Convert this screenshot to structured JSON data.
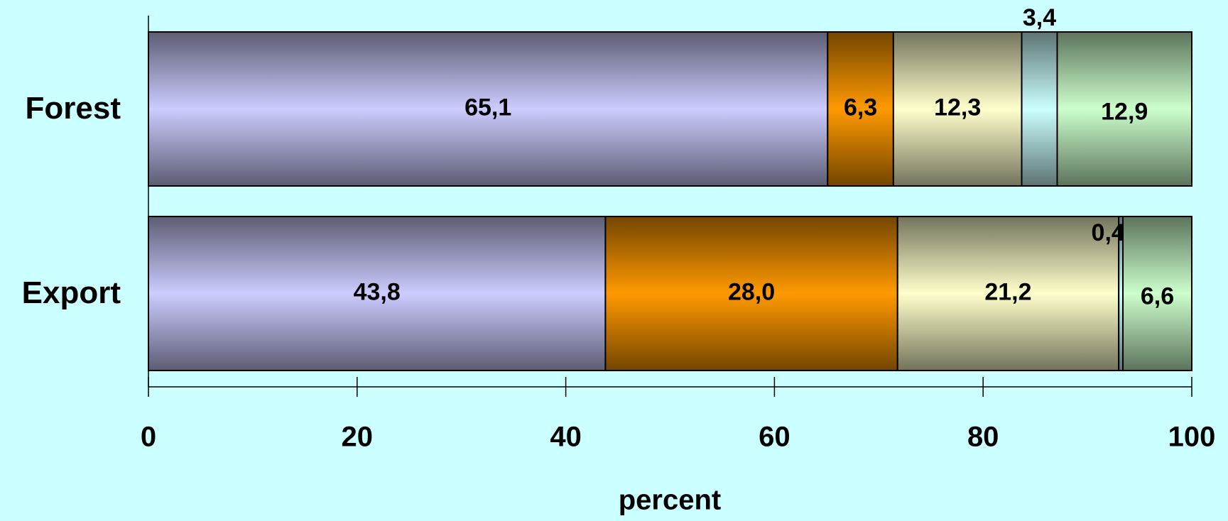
{
  "chart_data": {
    "type": "stacked-bar-horizontal",
    "x_label": "percent",
    "categories": [
      "Forest",
      "Export"
    ],
    "series": [
      {
        "color": "#ccccff",
        "values": [
          65.1,
          43.8
        ],
        "value_labels": [
          "65,1",
          "43,8"
        ]
      },
      {
        "color": "#ff9900",
        "values": [
          6.3,
          28.0
        ],
        "value_labels": [
          "6,3",
          "28,0"
        ]
      },
      {
        "color": "#ffffcc",
        "values": [
          12.3,
          21.2
        ],
        "value_labels": [
          "12,3",
          "21,2"
        ]
      },
      {
        "color": "#ccffff",
        "values": [
          3.4,
          0.4
        ],
        "value_labels": [
          "3,4",
          "0,4"
        ]
      },
      {
        "color": "#ccffcc",
        "values": [
          12.9,
          6.6
        ],
        "value_labels": [
          "12,9",
          "6,6"
        ]
      }
    ],
    "xlim": [
      0,
      100
    ],
    "xticks": [
      0,
      20,
      40,
      60,
      80,
      100
    ]
  }
}
